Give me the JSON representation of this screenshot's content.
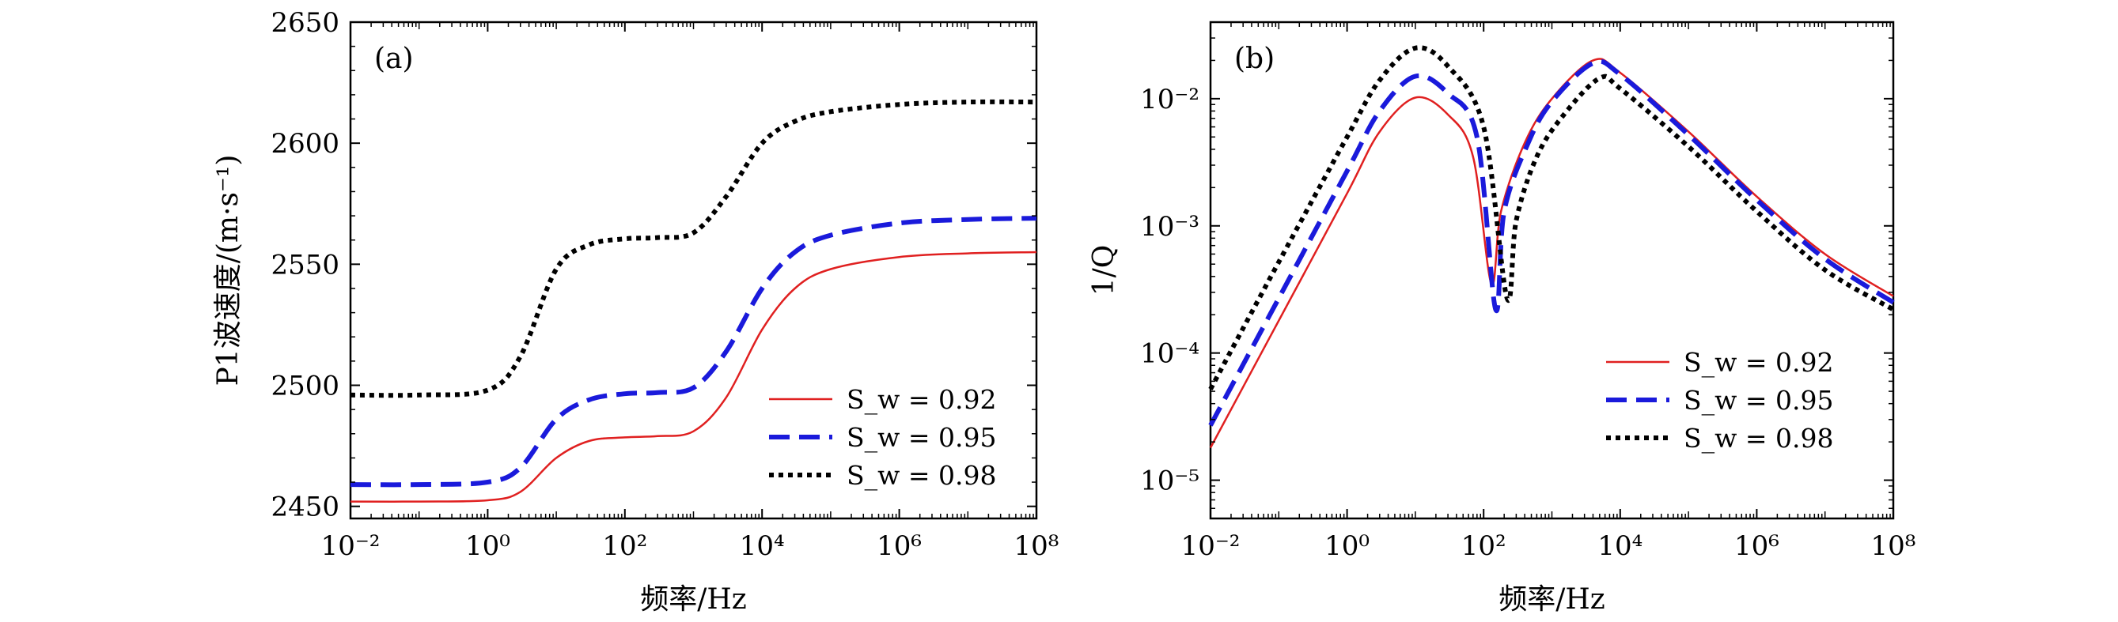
{
  "chart_data": [
    {
      "type": "line",
      "panel_label": "(a)",
      "xlabel": "频率/Hz",
      "ylabel": "P1波速度/(m·s⁻¹)",
      "xscale": "log",
      "xlim": [
        0.01,
        100000000
      ],
      "ylim": [
        2445,
        2650
      ],
      "x_ticks": [
        "10⁻²",
        "10⁰",
        "10²",
        "10⁴",
        "10⁶",
        "10⁸"
      ],
      "y_ticks": [
        "2450",
        "2500",
        "2550",
        "2600",
        "2650"
      ],
      "legend_position": "lower-right",
      "series": [
        {
          "name": "S_w = 0.92",
          "color": "#e02020",
          "style": "solid",
          "x": [
            0.01,
            0.1,
            1,
            3,
            10,
            30,
            100,
            300,
            1000,
            3000,
            10000,
            30000,
            100000,
            1000000,
            10000000,
            100000000
          ],
          "y": [
            2452,
            2452,
            2452.5,
            2456,
            2470,
            2477,
            2478.5,
            2479,
            2481,
            2495,
            2523,
            2540,
            2548,
            2553,
            2554.5,
            2555
          ]
        },
        {
          "name": "S_w = 0.95",
          "color": "#1a1adb",
          "style": "dashed",
          "x": [
            0.01,
            0.1,
            1,
            3,
            10,
            30,
            100,
            300,
            1000,
            3000,
            10000,
            30000,
            100000,
            1000000,
            10000000,
            100000000
          ],
          "y": [
            2459,
            2459,
            2460,
            2466,
            2486,
            2494,
            2496.5,
            2497,
            2499,
            2514,
            2540,
            2555,
            2562,
            2567,
            2568.5,
            2569
          ]
        },
        {
          "name": "S_w = 0.98",
          "color": "#000000",
          "style": "dotted",
          "x": [
            0.01,
            0.1,
            1,
            3,
            10,
            30,
            100,
            300,
            1000,
            3000,
            10000,
            30000,
            100000,
            1000000,
            10000000,
            100000000
          ],
          "y": [
            2496,
            2496,
            2498,
            2512,
            2548,
            2558,
            2560.5,
            2561,
            2563,
            2578,
            2600,
            2609,
            2613,
            2616,
            2617,
            2617
          ]
        }
      ]
    },
    {
      "type": "line",
      "panel_label": "(b)",
      "xlabel": "频率/Hz",
      "ylabel": "1/Q",
      "xscale": "log",
      "yscale": "log",
      "xlim": [
        0.01,
        100000000
      ],
      "ylim": [
        5e-06,
        0.04
      ],
      "x_ticks": [
        "10⁻²",
        "10⁰",
        "10²",
        "10⁴",
        "10⁶",
        "10⁸"
      ],
      "y_ticks": [
        "10⁻⁵",
        "10⁻⁴",
        "10⁻³",
        "10⁻²"
      ],
      "legend_position": "middle-right",
      "series": [
        {
          "name": "S_w = 0.92",
          "color": "#e02020",
          "style": "solid",
          "x": [
            0.01,
            0.1,
            1,
            3,
            10,
            30,
            70,
            130,
            180,
            400,
            1000,
            4000,
            10000,
            100000,
            1000000,
            10000000,
            100000000
          ],
          "y": [
            1.8e-05,
            0.00018,
            0.0018,
            0.0055,
            0.0102,
            0.0075,
            0.0035,
            0.00035,
            0.0013,
            0.0045,
            0.01,
            0.02,
            0.016,
            0.0055,
            0.0017,
            0.0006,
            0.00028
          ]
        },
        {
          "name": "S_w = 0.95",
          "color": "#1a1adb",
          "style": "dashed",
          "x": [
            0.01,
            0.1,
            1,
            3,
            10,
            30,
            80,
            150,
            200,
            450,
            1000,
            4000,
            10000,
            100000,
            1000000,
            10000000,
            100000000
          ],
          "y": [
            2.7e-05,
            0.00027,
            0.0027,
            0.008,
            0.015,
            0.011,
            0.005,
            0.00022,
            0.0013,
            0.0045,
            0.0095,
            0.019,
            0.0155,
            0.0052,
            0.0016,
            0.00055,
            0.00025
          ]
        },
        {
          "name": "S_w = 0.98",
          "color": "#000000",
          "style": "dotted",
          "x": [
            0.01,
            0.1,
            1,
            3,
            10,
            30,
            100,
            220,
            300,
            600,
            1500,
            5000,
            10000,
            100000,
            1000000,
            10000000,
            100000000
          ],
          "y": [
            5.2e-05,
            0.00052,
            0.005,
            0.014,
            0.025,
            0.018,
            0.006,
            0.00027,
            0.0011,
            0.0035,
            0.0075,
            0.0145,
            0.012,
            0.0042,
            0.0013,
            0.00045,
            0.00022
          ]
        }
      ]
    }
  ]
}
